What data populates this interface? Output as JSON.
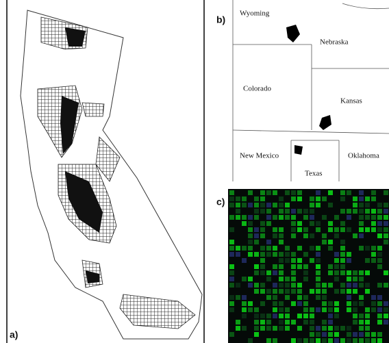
{
  "panels": [
    {
      "label": "a)"
    },
    {
      "label": "b)",
      "states": [
        "Wyoming",
        "Nebraska",
        "Colorado",
        "Kansas",
        "New Mexico",
        "Texas",
        "Oklahoma"
      ]
    },
    {
      "label": "c)"
    }
  ]
}
